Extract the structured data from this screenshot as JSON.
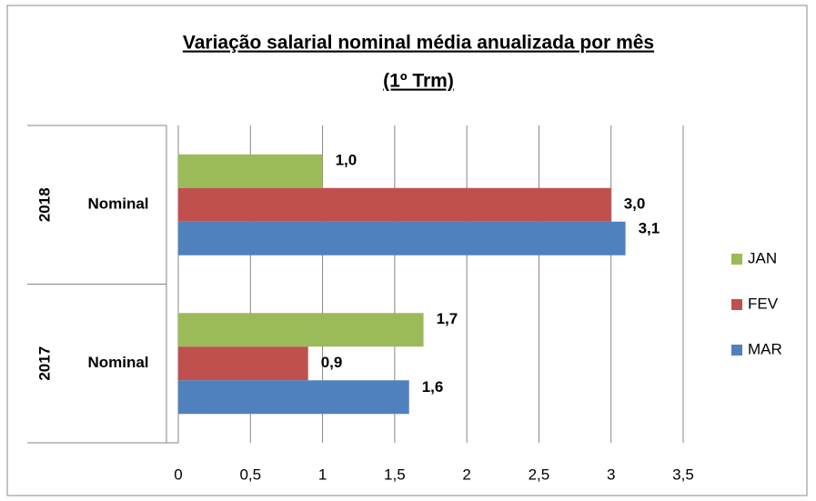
{
  "chart_data": {
    "type": "bar",
    "orientation": "horizontal",
    "title": "Variação salarial nominal média anualizada por mês",
    "subtitle": "(1º Trm)",
    "groups": [
      "2018",
      "2017"
    ],
    "categories": [
      "Nominal",
      "Nominal"
    ],
    "series": [
      {
        "name": "JAN",
        "color": "#9bbb59",
        "values": [
          1.0,
          1.7
        ],
        "value_labels": [
          "1,0",
          "1,7"
        ]
      },
      {
        "name": "FEV",
        "color": "#c0504d",
        "values": [
          3.0,
          0.9
        ],
        "value_labels": [
          "3,0",
          "0,9"
        ]
      },
      {
        "name": "MAR",
        "color": "#4f81bd",
        "values": [
          3.1,
          1.6
        ],
        "value_labels": [
          "3,1",
          "1,6"
        ]
      }
    ],
    "xlim": [
      0,
      3.5
    ],
    "xticks": [
      0,
      {
        "value": 0.5,
        "label": "0,5"
      },
      1,
      {
        "value": 1.5,
        "label": "1,5"
      },
      2,
      {
        "value": 2.5,
        "label": "2,5"
      },
      3,
      {
        "value": 3.5,
        "label": "3,5"
      }
    ],
    "grid": true,
    "legend": "right"
  }
}
